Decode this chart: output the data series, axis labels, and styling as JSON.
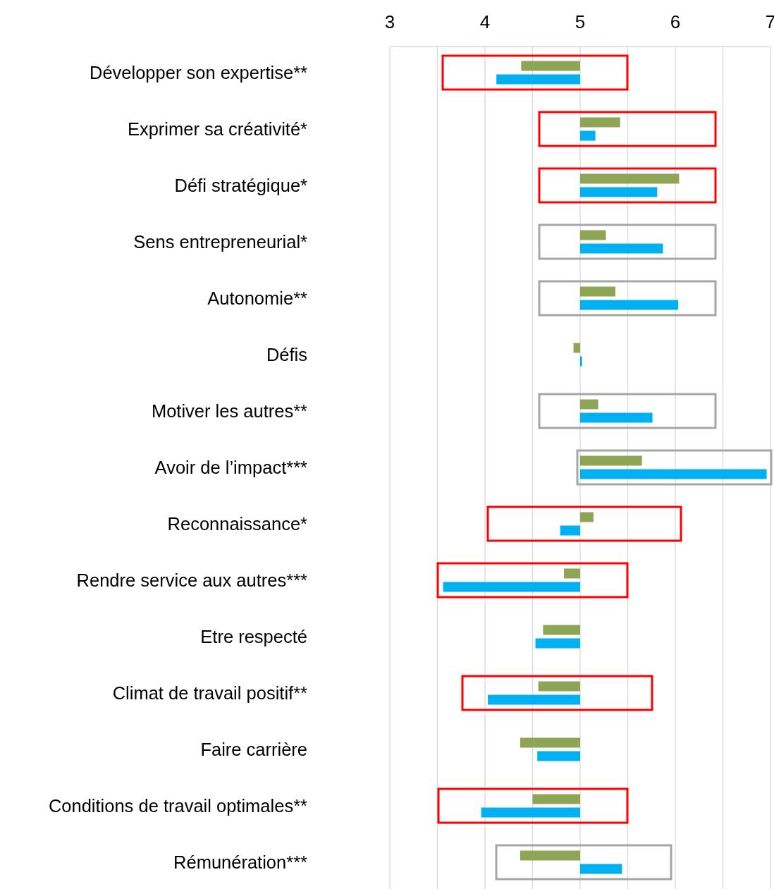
{
  "chart_data": {
    "type": "bar",
    "orientation": "horizontal",
    "categories": [
      "Développer son expertise**",
      "Exprimer sa créativité*",
      "Défi stratégique*",
      "Sens entrepreneurial*",
      "Autonomie**",
      "Défis",
      "Motiver les autres**",
      "Avoir de l’impact***",
      "Reconnaissance*",
      "Rendre service aux autres***",
      "Etre respecté",
      "Climat de travail positif**",
      "Faire carrière",
      "Conditions de travail optimales**",
      "Rémunération***"
    ],
    "series": [
      {
        "color": "#8fa556",
        "base": [
          5,
          5,
          5,
          5,
          5,
          5,
          5,
          5,
          5,
          5,
          5,
          5,
          5,
          5,
          5
        ],
        "values": [
          -0.62,
          0.42,
          1.04,
          0.27,
          0.37,
          -0.07,
          0.19,
          0.65,
          0.14,
          -0.17,
          -0.39,
          -0.44,
          -0.63,
          -0.5,
          -0.63
        ]
      },
      {
        "color": "#00b0f0",
        "base": [
          5,
          5,
          5,
          5,
          5,
          5,
          5,
          5,
          5,
          5,
          5,
          5,
          5,
          5,
          5
        ],
        "values": [
          -0.88,
          0.16,
          0.81,
          0.87,
          1.03,
          0.02,
          0.76,
          1.96,
          -0.21,
          -1.44,
          -0.47,
          -0.97,
          -0.45,
          -1.04,
          0.44
        ]
      }
    ],
    "xlim": [
      3,
      7
    ],
    "xticks": [
      3,
      {
        "value": 3.5,
        "label": null
      },
      4,
      {
        "value": 4.5,
        "label": null
      },
      5,
      {
        "value": 5.5,
        "label": null
      },
      6,
      {
        "value": 6.5,
        "label": null
      },
      7
    ],
    "grid": "x"
  }
}
